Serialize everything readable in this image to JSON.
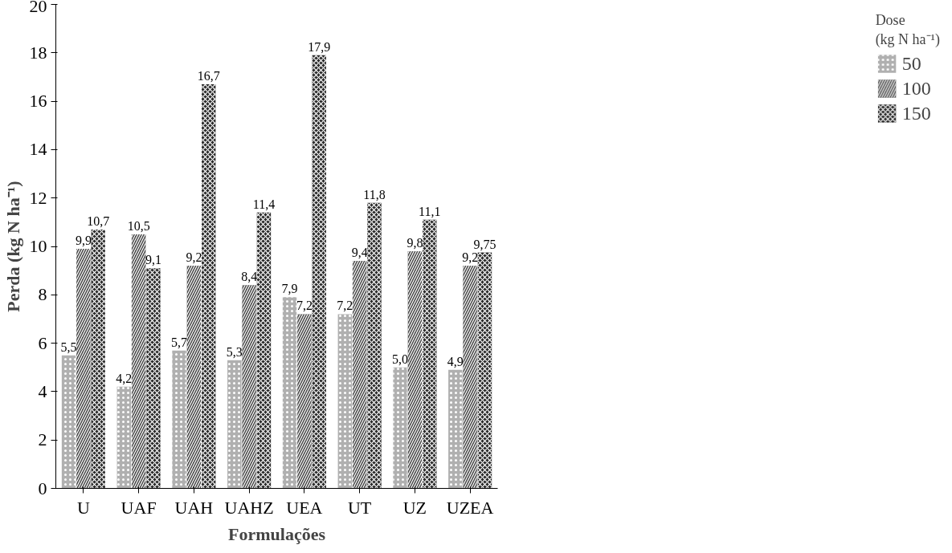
{
  "chart_data": {
    "type": "bar",
    "xlabel": "Formulações",
    "ylabel": "Perda (kg N ha⁻¹)",
    "legend_title": "Dose\n(kg N ha⁻¹)",
    "legend": "right",
    "categories": [
      "U",
      "UAF",
      "UAH",
      "UAHZ",
      "UEA",
      "UT",
      "UZ",
      "UZEA"
    ],
    "ylim": [
      0,
      20
    ],
    "yticks": [
      0,
      2,
      4,
      6,
      8,
      10,
      12,
      14,
      16,
      18,
      20
    ],
    "grid": false,
    "series": [
      {
        "name": "50",
        "color": "#b0b0b0",
        "values": [
          5.5,
          4.2,
          5.7,
          5.3,
          7.9,
          7.2,
          5.0,
          4.9
        ],
        "value_labels": [
          "5,5",
          "4,2",
          "5,7",
          "5,3",
          "7,9",
          "7,2",
          "5,0",
          "4,9"
        ]
      },
      {
        "name": "100",
        "color": "#4a4a4a",
        "values": [
          9.9,
          10.5,
          9.2,
          8.4,
          7.2,
          9.4,
          9.8,
          9.2
        ],
        "value_labels": [
          "9,9",
          "10,5",
          "9,2",
          "8,4",
          "7,2",
          "9,4",
          "9,8",
          "9,2"
        ]
      },
      {
        "name": "150",
        "color": "#2a2a2a",
        "values": [
          10.7,
          9.1,
          16.7,
          11.4,
          17.9,
          11.8,
          11.1,
          9.75
        ],
        "value_labels": [
          "10,7",
          "9,1",
          "16,7",
          "11,4",
          "17,9",
          "11,8",
          "11,1",
          "9,75"
        ]
      }
    ]
  }
}
